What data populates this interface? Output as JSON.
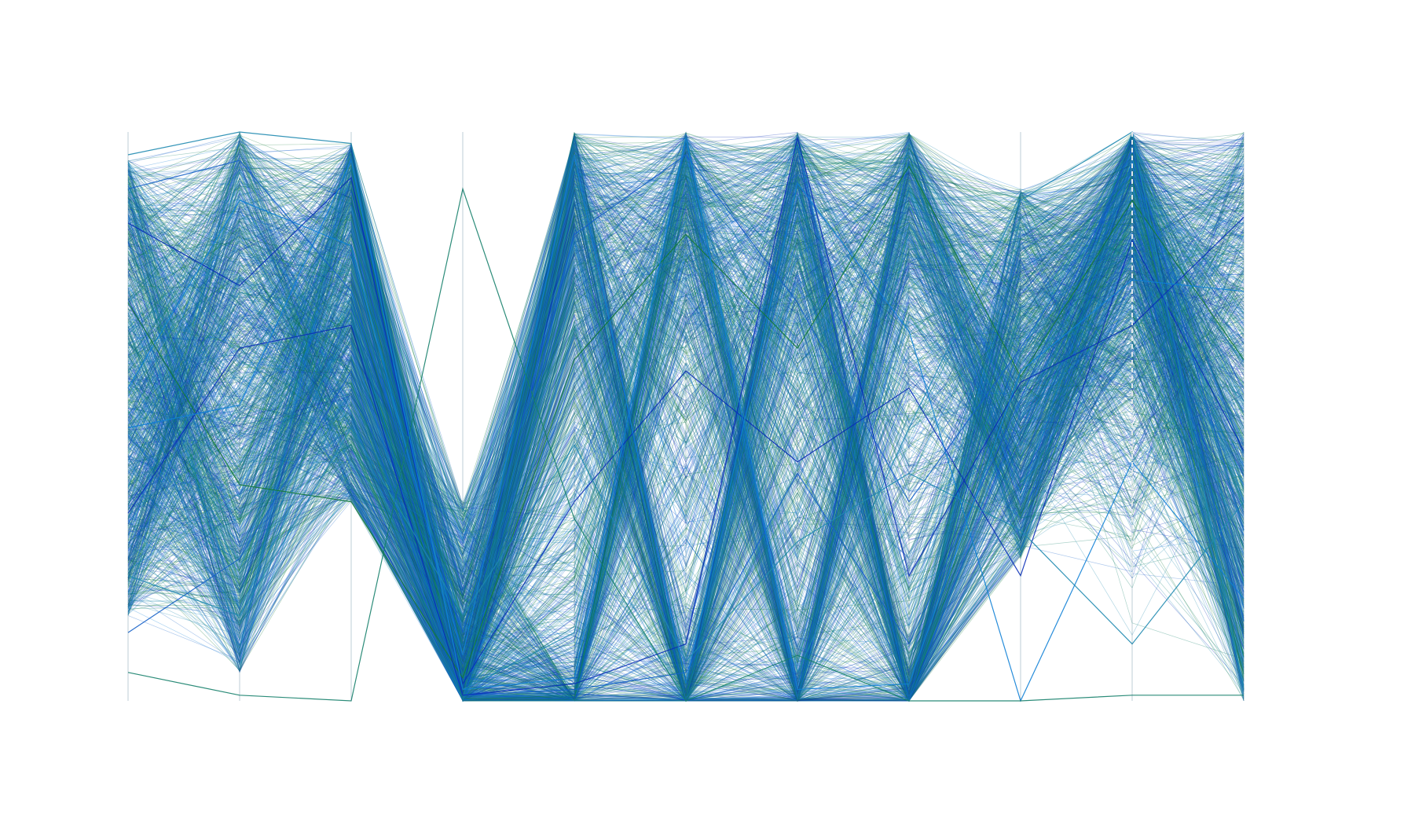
{
  "chart_data": {
    "type": "parallel_coordinates",
    "axis_count": 11,
    "title": "",
    "axis_labels": [],
    "normalized_range": [
      0,
      1
    ],
    "grid": false,
    "legend": "none",
    "colors": {
      "background": "#ffffff",
      "series": [
        "#0a2fb8",
        "#1560c8",
        "#0e7fd6",
        "#1f8ab0",
        "#15806a",
        "#157a3a"
      ]
    },
    "series": [
      {
        "values": [
          0.84,
          0.73,
          0.92,
          0.03,
          0.35,
          0.58,
          0.42,
          0.55,
          0.22,
          0.81,
          0.44
        ]
      },
      {
        "values": [
          0.12,
          0.25,
          0.58,
          0.01,
          0.02,
          0.05,
          0.4,
          0.1,
          0.53,
          0.97,
          0.3
        ]
      },
      {
        "values": [
          0.55,
          0.88,
          0.8,
          0.08,
          0.96,
          0.03,
          0.91,
          0.65,
          0.0,
          0.42,
          0.18
        ]
      },
      {
        "values": [
          0.96,
          1.0,
          0.98,
          0.02,
          0.12,
          0.99,
          0.05,
          0.48,
          0.88,
          1.0,
          0.02
        ]
      },
      {
        "values": [
          0.05,
          0.01,
          0.0,
          0.9,
          0.32,
          0.0,
          0.08,
          0.0,
          0.0,
          0.01,
          0.01
        ]
      },
      {
        "values": [
          0.7,
          0.38,
          0.35,
          0.04,
          0.6,
          0.82,
          0.62,
          0.94,
          0.57,
          0.88,
          0.6
        ]
      },
      {
        "values": [
          0.33,
          0.62,
          0.66,
          0.01,
          0.03,
          0.1,
          0.99,
          0.22,
          0.56,
          0.66,
          0.85
        ]
      },
      {
        "values": [
          0.9,
          0.95,
          0.72,
          0.12,
          0.82,
          0.96,
          0.7,
          0.35,
          0.62,
          0.93,
          0.14
        ]
      },
      {
        "values": [
          0.48,
          0.52,
          0.95,
          0.02,
          0.04,
          0.99,
          0.02,
          0.03,
          0.58,
          0.74,
          0.72
        ]
      },
      {
        "values": [
          0.22,
          0.15,
          0.48,
          0.15,
          0.45,
          0.07,
          0.28,
          0.4,
          0.3,
          0.1,
          0.35
        ]
      }
    ]
  }
}
